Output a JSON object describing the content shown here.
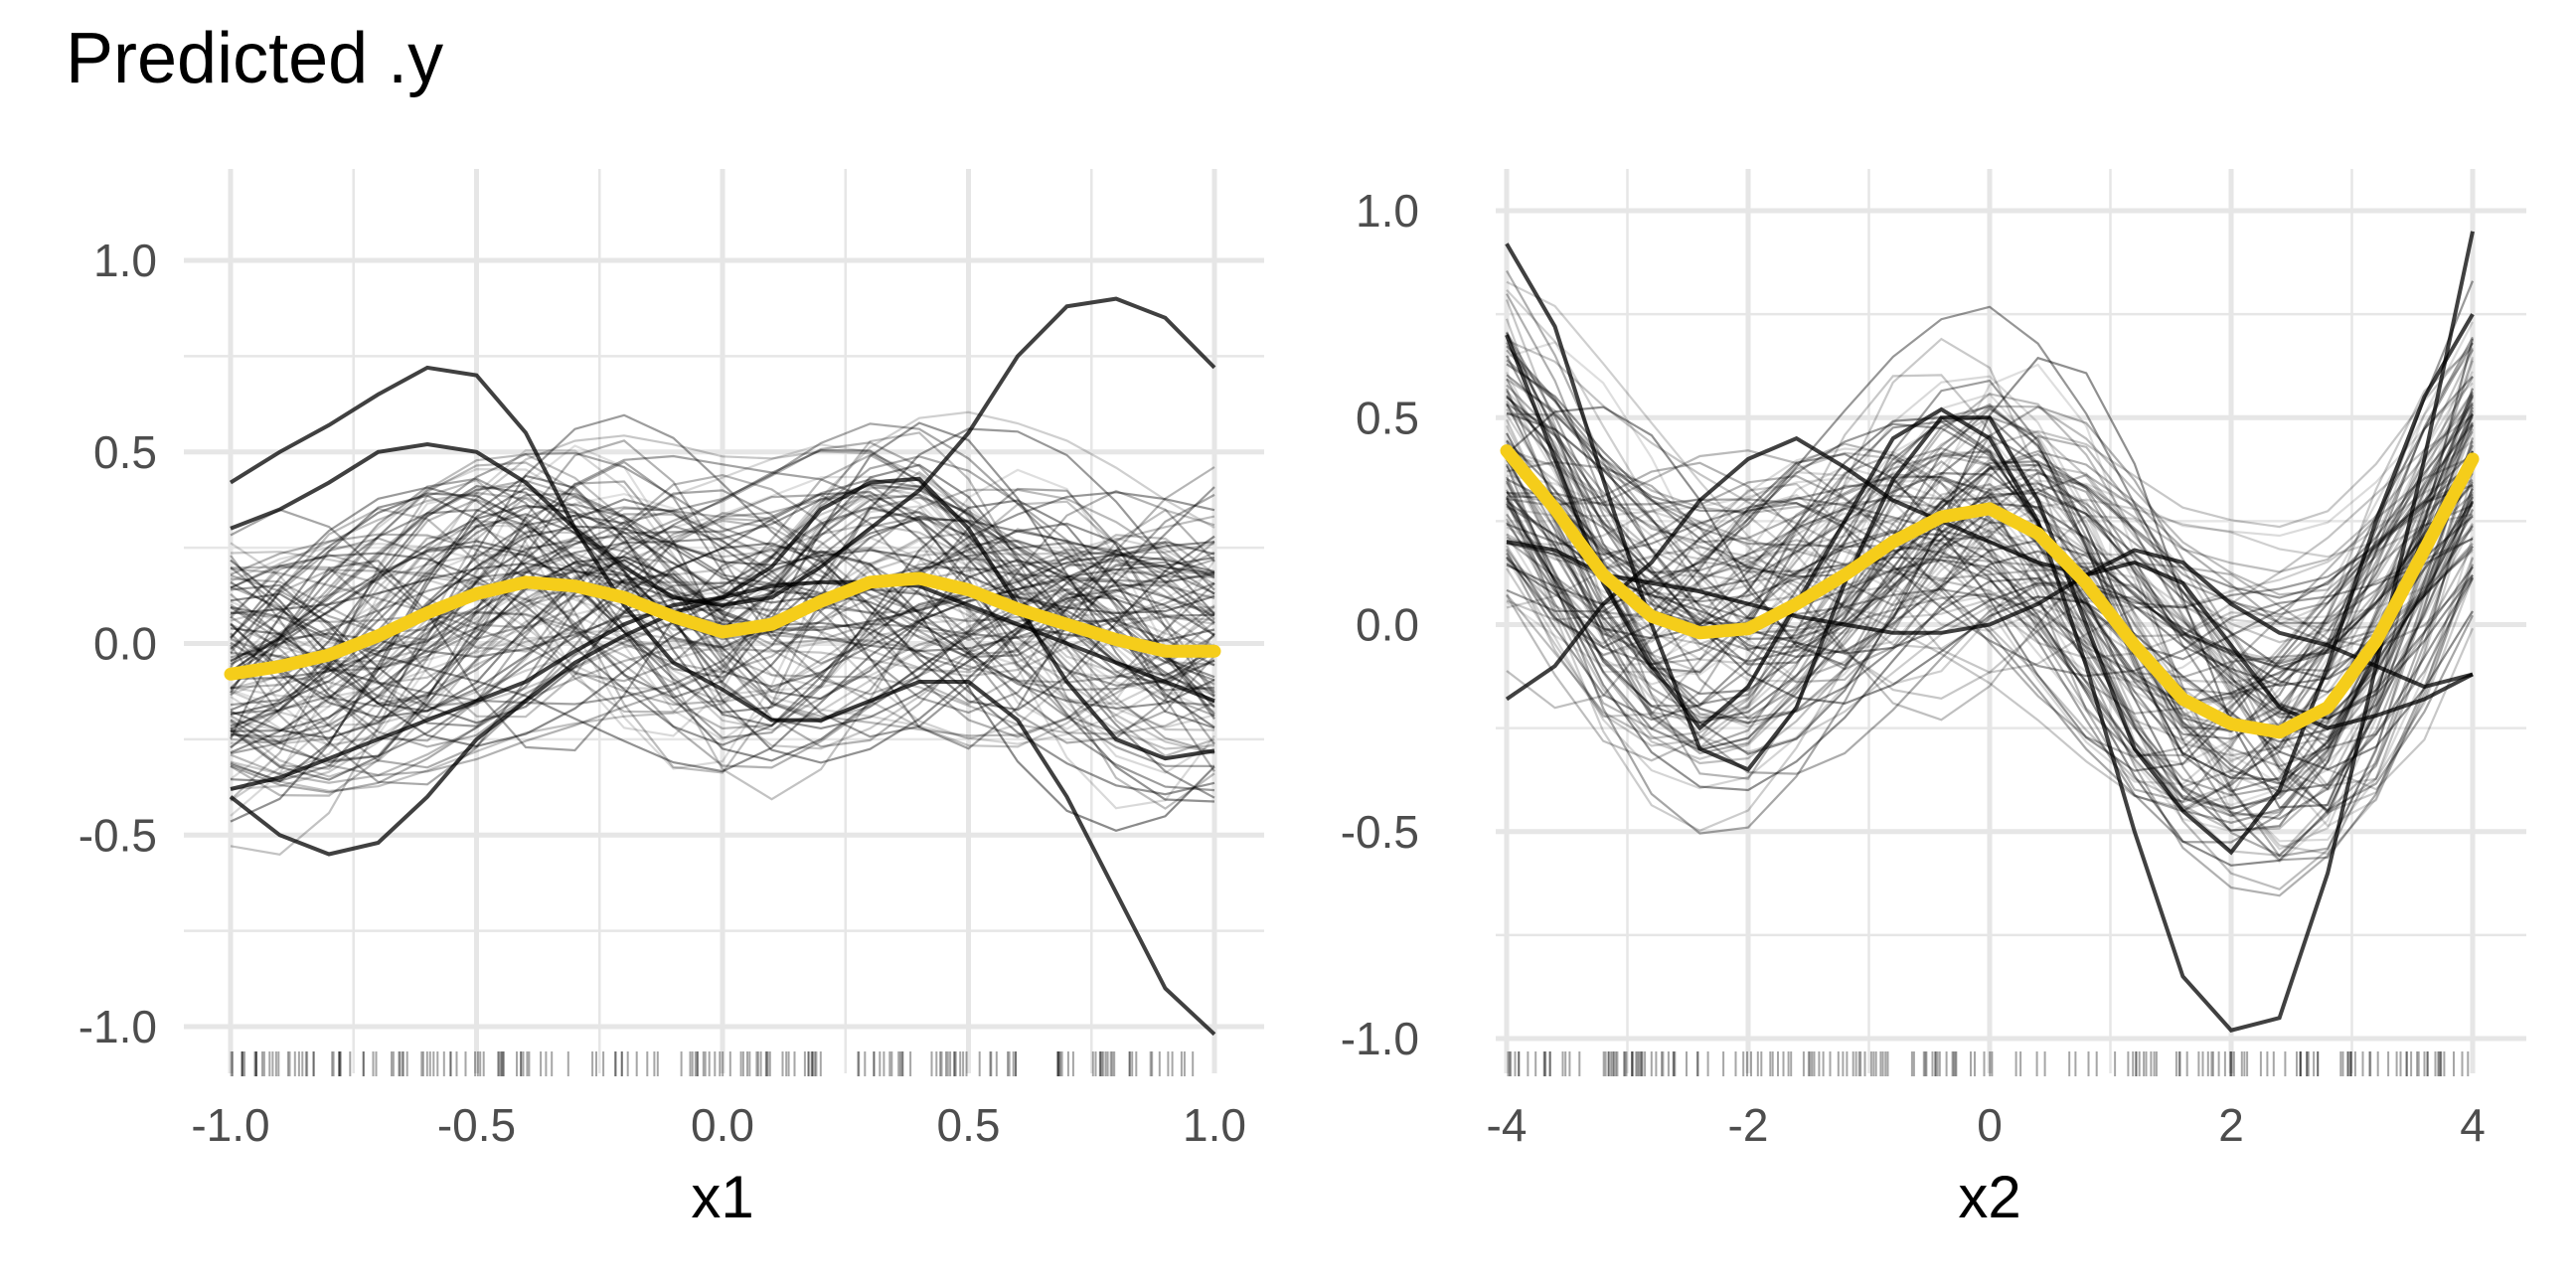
{
  "chart_data": {
    "title": "Predicted .y",
    "type": "line",
    "style": {
      "ice_color": "#000000",
      "pdp_color": "#F5CD1A",
      "grid_color": "#e6e6e6",
      "tick_text_color": "#4d4d4d",
      "grid": true
    },
    "panels": [
      {
        "xlabel": "x1",
        "ylabel": "",
        "xlim": [
          -1.0,
          1.0
        ],
        "ylim": [
          -1.0,
          1.0
        ],
        "x_ticks": [
          -1.0,
          -0.5,
          0.0,
          0.5,
          1.0
        ],
        "x_tick_labels": [
          "-1.0",
          "-0.5",
          "0.0",
          "0.5",
          "1.0"
        ],
        "y_ticks": [
          -1.0,
          -0.5,
          0.0,
          0.5,
          1.0
        ],
        "y_tick_labels": [
          "-1.0",
          "-0.5",
          "0.0",
          "0.5",
          "1.0"
        ],
        "grid_x": [
          -1.0,
          -0.75,
          -0.5,
          -0.25,
          0.0,
          0.25,
          0.5,
          0.75,
          1.0
        ],
        "grid_y": [
          -1.0,
          -0.75,
          -0.5,
          -0.25,
          0.0,
          0.25,
          0.5,
          0.75,
          1.0
        ],
        "x": [
          -1.0,
          -0.9,
          -0.8,
          -0.7,
          -0.6,
          -0.5,
          -0.4,
          -0.3,
          -0.2,
          -0.1,
          0.0,
          0.1,
          0.2,
          0.3,
          0.4,
          0.5,
          0.6,
          0.7,
          0.8,
          0.9,
          1.0
        ],
        "pdp": [
          -0.08,
          -0.06,
          -0.03,
          0.02,
          0.08,
          0.13,
          0.16,
          0.15,
          0.12,
          0.07,
          0.03,
          0.05,
          0.11,
          0.16,
          0.17,
          0.14,
          0.09,
          0.05,
          0.01,
          -0.02,
          -0.02
        ],
        "ice_highlight": [
          [
            0.42,
            0.5,
            0.57,
            0.65,
            0.72,
            0.7,
            0.55,
            0.3,
            0.1,
            -0.05,
            -0.12,
            -0.2,
            -0.2,
            -0.15,
            -0.1,
            -0.1,
            -0.2,
            -0.4,
            -0.65,
            -0.9,
            -1.02
          ],
          [
            -0.4,
            -0.5,
            -0.55,
            -0.52,
            -0.4,
            -0.25,
            -0.15,
            -0.05,
            0.02,
            0.08,
            0.12,
            0.2,
            0.35,
            0.42,
            0.43,
            0.3,
            0.1,
            -0.1,
            -0.25,
            -0.3,
            -0.28
          ],
          [
            0.3,
            0.35,
            0.42,
            0.5,
            0.52,
            0.5,
            0.42,
            0.3,
            0.2,
            0.12,
            0.1,
            0.12,
            0.2,
            0.3,
            0.4,
            0.55,
            0.75,
            0.88,
            0.9,
            0.85,
            0.72
          ],
          [
            -0.38,
            -0.35,
            -0.3,
            -0.25,
            -0.2,
            -0.15,
            -0.1,
            -0.02,
            0.05,
            0.1,
            0.12,
            0.15,
            0.16,
            0.16,
            0.15,
            0.1,
            0.05,
            0.0,
            -0.05,
            -0.1,
            -0.15
          ]
        ]
      },
      {
        "xlabel": "x2",
        "ylabel": "",
        "xlim": [
          -4.0,
          4.0
        ],
        "ylim": [
          -1.0,
          1.0
        ],
        "x_ticks": [
          -4,
          -2,
          0,
          2,
          4
        ],
        "x_tick_labels": [
          "-4",
          "-2",
          "0",
          "2",
          "4"
        ],
        "y_ticks": [
          -1.0,
          -0.5,
          0.0,
          0.5,
          1.0
        ],
        "y_tick_labels": [
          "-1.0",
          "-0.5",
          "0.0",
          "0.5",
          "1.0"
        ],
        "grid_x": [
          -4,
          -3,
          -2,
          -1,
          0,
          1,
          2,
          3,
          4
        ],
        "grid_y": [
          -1.0,
          -0.75,
          -0.5,
          -0.25,
          0.0,
          0.25,
          0.5,
          0.75,
          1.0
        ],
        "x": [
          -4.0,
          -3.6,
          -3.2,
          -2.8,
          -2.4,
          -2.0,
          -1.6,
          -1.2,
          -0.8,
          -0.4,
          0.0,
          0.4,
          0.8,
          1.2,
          1.6,
          2.0,
          2.4,
          2.8,
          3.2,
          3.6,
          4.0
        ],
        "pdp": [
          0.42,
          0.28,
          0.12,
          0.02,
          -0.02,
          -0.01,
          0.05,
          0.12,
          0.2,
          0.26,
          0.28,
          0.22,
          0.1,
          -0.05,
          -0.18,
          -0.24,
          -0.26,
          -0.2,
          -0.04,
          0.18,
          0.4
        ],
        "ice_highlight": [
          [
            0.92,
            0.72,
            0.35,
            0.0,
            -0.3,
            -0.35,
            -0.2,
            0.1,
            0.35,
            0.5,
            0.5,
            0.3,
            0.0,
            -0.3,
            -0.45,
            -0.55,
            -0.4,
            -0.1,
            0.25,
            0.55,
            0.75
          ],
          [
            -0.18,
            -0.1,
            0.05,
            0.15,
            0.3,
            0.4,
            0.45,
            0.38,
            0.3,
            0.25,
            0.2,
            0.15,
            0.12,
            0.15,
            0.1,
            -0.05,
            -0.2,
            -0.25,
            -0.22,
            -0.18,
            -0.12
          ],
          [
            0.7,
            0.4,
            0.1,
            -0.1,
            -0.25,
            -0.15,
            0.05,
            0.25,
            0.45,
            0.52,
            0.45,
            0.25,
            -0.1,
            -0.5,
            -0.85,
            -0.98,
            -0.95,
            -0.6,
            -0.1,
            0.4,
            0.95
          ],
          [
            0.2,
            0.18,
            0.12,
            0.1,
            0.08,
            0.05,
            0.02,
            0.0,
            -0.02,
            -0.02,
            0.0,
            0.05,
            0.12,
            0.18,
            0.15,
            0.05,
            -0.02,
            -0.05,
            -0.1,
            -0.15,
            -0.12
          ]
        ]
      }
    ]
  }
}
